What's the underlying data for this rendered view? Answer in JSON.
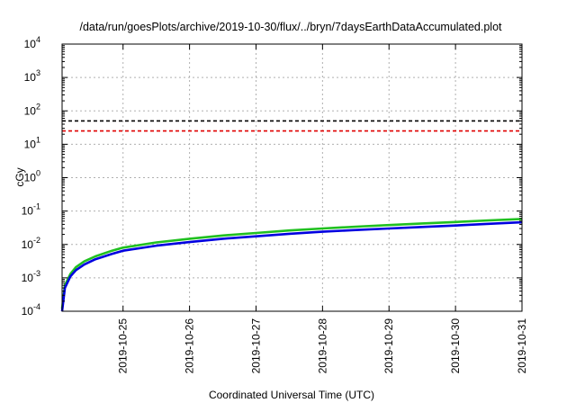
{
  "chart_data": {
    "type": "line",
    "title": "/data/run/goesPlots/archive/2019-10-30/flux/../bryn/7daysEarthDataAccumulated.plot",
    "xlabel": "Coordinated Universal Time (UTC)",
    "ylabel": "cGy",
    "x_range": [
      "2019-10-24T02:00",
      "2019-10-31T00:00"
    ],
    "x_ticks": [
      "2019-10-25",
      "2019-10-26",
      "2019-10-27",
      "2019-10-28",
      "2019-10-29",
      "2019-10-30",
      "2019-10-31"
    ],
    "y_scale": "log",
    "ylim": [
      0.0001,
      10000
    ],
    "y_ticks": [
      {
        "value": 0.0001,
        "base": "10",
        "exp": "-4"
      },
      {
        "value": 0.001,
        "base": "10",
        "exp": "-3"
      },
      {
        "value": 0.01,
        "base": "10",
        "exp": "-2"
      },
      {
        "value": 0.1,
        "base": "10",
        "exp": "-1"
      },
      {
        "value": 1,
        "base": "10",
        "exp": "0"
      },
      {
        "value": 10,
        "base": "10",
        "exp": "1"
      },
      {
        "value": 100,
        "base": "10",
        "exp": "2"
      },
      {
        "value": 1000,
        "base": "10",
        "exp": "3"
      },
      {
        "value": 10000,
        "base": "10",
        "exp": "4"
      }
    ],
    "grid": true,
    "series": [
      {
        "color": "#e00000",
        "style": "dashed",
        "x": [
          "2019-10-24T02:00",
          "2019-10-31T00:00"
        ],
        "y": [
          25,
          25
        ]
      },
      {
        "color": "#000000",
        "style": "dashed",
        "x": [
          "2019-10-24T02:00",
          "2019-10-31T00:00"
        ],
        "y": [
          50,
          50
        ]
      },
      {
        "color": "#20c020",
        "style": "solid",
        "x": [
          "2019-10-24T02:00",
          "2019-10-24T03:00",
          "2019-10-24T05:00",
          "2019-10-24T07:00",
          "2019-10-24T10:00",
          "2019-10-24T14:00",
          "2019-10-24T20:00",
          "2019-10-25T00:00",
          "2019-10-25T12:00",
          "2019-10-26T00:00",
          "2019-10-26T12:00",
          "2019-10-27T00:00",
          "2019-10-27T12:00",
          "2019-10-28T00:00",
          "2019-10-28T12:00",
          "2019-10-29T00:00",
          "2019-10-29T12:00",
          "2019-10-30T00:00",
          "2019-10-30T12:00",
          "2019-10-31T00:00"
        ],
        "y": [
          0.00012,
          0.0006,
          0.0013,
          0.0021,
          0.0031,
          0.0044,
          0.0065,
          0.008,
          0.0115,
          0.0148,
          0.0185,
          0.022,
          0.0262,
          0.03,
          0.034,
          0.038,
          0.0425,
          0.047,
          0.0525,
          0.058
        ]
      },
      {
        "color": "#0000e0",
        "style": "solid",
        "x": [
          "2019-10-24T02:00",
          "2019-10-24T03:00",
          "2019-10-24T05:00",
          "2019-10-24T07:00",
          "2019-10-24T10:00",
          "2019-10-24T14:00",
          "2019-10-24T20:00",
          "2019-10-25T00:00",
          "2019-10-25T12:00",
          "2019-10-26T00:00",
          "2019-10-26T12:00",
          "2019-10-27T00:00",
          "2019-10-27T12:00",
          "2019-10-28T00:00",
          "2019-10-28T12:00",
          "2019-10-29T00:00",
          "2019-10-29T12:00",
          "2019-10-30T00:00",
          "2019-10-30T12:00",
          "2019-10-31T00:00"
        ],
        "y": [
          0.0001,
          0.0005,
          0.0011,
          0.0017,
          0.0025,
          0.0036,
          0.0052,
          0.0065,
          0.0092,
          0.0118,
          0.0148,
          0.0175,
          0.0208,
          0.024,
          0.027,
          0.03,
          0.0335,
          0.037,
          0.0415,
          0.046
        ]
      }
    ]
  }
}
